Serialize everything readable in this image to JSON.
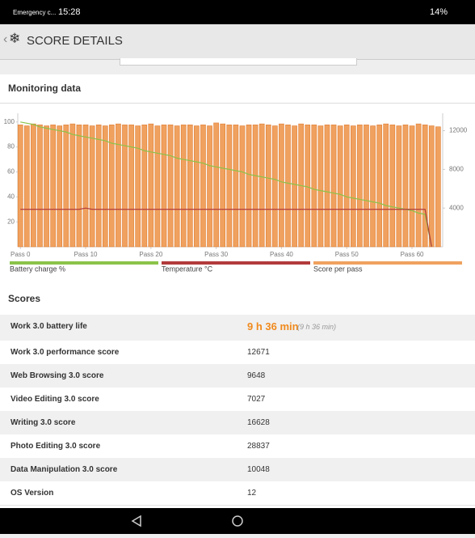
{
  "status_bar": {
    "carrier": "Emergency c...",
    "time": "15:28",
    "battery": "14%"
  },
  "header": {
    "title": "SCORE DETAILS"
  },
  "monitoring": {
    "title": "Monitoring data"
  },
  "chart_data": {
    "type": "bar",
    "x": [
      0,
      1,
      2,
      3,
      4,
      5,
      6,
      7,
      8,
      9,
      10,
      11,
      12,
      13,
      14,
      15,
      16,
      17,
      18,
      19,
      20,
      21,
      22,
      23,
      24,
      25,
      26,
      27,
      28,
      29,
      30,
      31,
      32,
      33,
      34,
      35,
      36,
      37,
      38,
      39,
      40,
      41,
      42,
      43,
      44,
      45,
      46,
      47,
      48,
      49,
      50,
      51,
      52,
      53,
      54,
      55,
      56,
      57,
      58,
      59,
      60,
      61,
      62,
      63,
      64
    ],
    "xlim": [
      -0.4,
      64.7
    ],
    "xticks": [
      {
        "value": 0,
        "label": "Pass 0"
      },
      {
        "value": 10,
        "label": "Pass 10"
      },
      {
        "value": 20,
        "label": "Pass 20"
      },
      {
        "value": 30,
        "label": "Pass 30"
      },
      {
        "value": 40,
        "label": "Pass 40"
      },
      {
        "value": 50,
        "label": "Pass 50"
      },
      {
        "value": 60,
        "label": "Pass 60"
      }
    ],
    "ylim": [
      0,
      107
    ],
    "yticks": [
      20,
      40,
      60,
      80,
      100
    ],
    "y2lim": [
      0,
      13800
    ],
    "y2ticks": [
      4000,
      8000,
      12000
    ],
    "grid": false,
    "series": [
      {
        "name": "Battery charge %",
        "color": "#8bc34a",
        "kind": "line",
        "values": [
          100,
          99,
          98,
          96,
          95,
          94,
          93,
          92,
          90,
          89,
          88,
          87,
          86,
          85,
          83,
          82,
          81,
          80,
          79,
          77,
          76,
          75,
          74,
          73,
          71,
          70,
          69,
          68,
          67,
          65,
          64,
          63,
          62,
          61,
          60,
          58,
          57,
          56,
          55,
          54,
          52,
          51,
          50,
          49,
          48,
          46,
          45,
          44,
          43,
          42,
          40,
          39,
          38,
          37,
          36,
          35,
          33,
          32,
          31,
          30,
          29,
          27,
          26,
          0,
          null
        ]
      },
      {
        "name": "Temperature °C",
        "color": "#b23b3b",
        "kind": "line",
        "values": [
          30,
          30,
          30,
          30,
          30,
          30,
          30,
          30,
          30,
          30,
          31,
          30,
          30,
          30,
          30,
          30,
          30,
          30,
          30,
          30,
          30,
          30,
          30,
          30,
          30,
          30,
          30,
          30,
          30,
          30,
          30,
          30,
          30,
          30,
          30,
          30,
          30,
          30,
          30,
          30,
          30,
          30,
          30,
          30,
          30,
          30,
          30,
          30,
          30,
          30,
          30,
          30,
          30,
          30,
          30,
          30,
          30,
          30,
          30,
          30,
          30,
          30,
          30,
          0,
          null
        ]
      },
      {
        "name": "Score per pass",
        "color": "#f0a15f",
        "kind": "bar",
        "axis": "y2",
        "values": [
          12600,
          12500,
          12700,
          12600,
          12500,
          12600,
          12500,
          12600,
          12700,
          12600,
          12600,
          12500,
          12600,
          12500,
          12600,
          12700,
          12600,
          12600,
          12500,
          12600,
          12700,
          12500,
          12600,
          12600,
          12500,
          12600,
          12600,
          12500,
          12600,
          12500,
          12800,
          12700,
          12600,
          12600,
          12500,
          12600,
          12600,
          12700,
          12600,
          12500,
          12700,
          12600,
          12500,
          12700,
          12600,
          12600,
          12500,
          12600,
          12600,
          12500,
          12600,
          12500,
          12600,
          12600,
          12500,
          12600,
          12700,
          12600,
          12500,
          12600,
          12500,
          12700,
          12600,
          12500,
          12400
        ]
      }
    ]
  },
  "scores": {
    "title": "Scores",
    "rows": [
      {
        "label": "Work 3.0 battery life",
        "value": "9 h 36 min",
        "note": "(9 h 36 min)"
      },
      {
        "label": "Work 3.0 performance score",
        "value": 12671
      },
      {
        "label": "Web Browsing 3.0 score",
        "value": 9648
      },
      {
        "label": "Video Editing 3.0 score",
        "value": 7027
      },
      {
        "label": "Writing 3.0 score",
        "value": 16628
      },
      {
        "label": "Photo Editing 3.0 score",
        "value": 28837
      },
      {
        "label": "Data Manipulation 3.0 score",
        "value": 10048
      },
      {
        "label": "OS Version",
        "value": 12
      }
    ]
  }
}
